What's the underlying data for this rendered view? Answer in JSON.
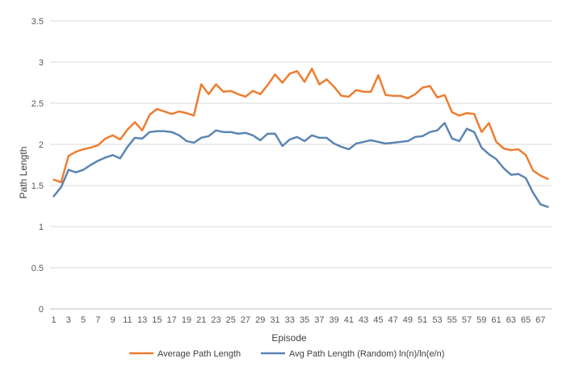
{
  "chart_data": {
    "type": "line",
    "title": "",
    "xlabel": "Episode",
    "ylabel": "Path Length",
    "ylim": [
      0,
      3.5
    ],
    "yticks": [
      "0",
      "0.5",
      "1",
      "1.5",
      "2",
      "2.5",
      "3",
      "3.5"
    ],
    "xtick_labels": [
      "1",
      "3",
      "5",
      "7",
      "9",
      "11",
      "13",
      "15",
      "17",
      "19",
      "21",
      "23",
      "25",
      "27",
      "29",
      "31",
      "33",
      "35",
      "37",
      "39",
      "41",
      "43",
      "45",
      "47",
      "49",
      "51",
      "53",
      "55",
      "57",
      "59",
      "61",
      "63",
      "65",
      "67"
    ],
    "grid": true,
    "legend_position": "bottom",
    "x": [
      1,
      2,
      3,
      4,
      5,
      6,
      7,
      8,
      9,
      10,
      11,
      12,
      13,
      14,
      15,
      16,
      17,
      18,
      19,
      20,
      21,
      22,
      23,
      24,
      25,
      26,
      27,
      28,
      29,
      30,
      31,
      32,
      33,
      34,
      35,
      36,
      37,
      38,
      39,
      40,
      41,
      42,
      43,
      44,
      45,
      46,
      47,
      48,
      49,
      50,
      51,
      52,
      53,
      54,
      55,
      56,
      57,
      58,
      59,
      60,
      61,
      62,
      63,
      64,
      65,
      66,
      67,
      68
    ],
    "series": [
      {
        "name": "Average Path Length",
        "color": "#ED7D31",
        "values": [
          1.57,
          1.54,
          1.86,
          1.91,
          1.94,
          1.96,
          1.99,
          2.07,
          2.11,
          2.06,
          2.18,
          2.27,
          2.17,
          2.36,
          2.43,
          2.4,
          2.37,
          2.4,
          2.38,
          2.35,
          2.73,
          2.61,
          2.73,
          2.64,
          2.65,
          2.61,
          2.58,
          2.65,
          2.61,
          2.72,
          2.85,
          2.75,
          2.86,
          2.89,
          2.76,
          2.92,
          2.73,
          2.79,
          2.7,
          2.59,
          2.58,
          2.66,
          2.64,
          2.64,
          2.84,
          2.6,
          2.59,
          2.59,
          2.56,
          2.61,
          2.69,
          2.71,
          2.57,
          2.6,
          2.39,
          2.35,
          2.38,
          2.37,
          2.15,
          2.26,
          2.03,
          1.95,
          1.93,
          1.94,
          1.87,
          1.68,
          1.62,
          1.58
        ]
      },
      {
        "name": "Avg Path Length (Random) ln(n)/ln(e/n)",
        "color": "#5B85B3",
        "values": [
          1.37,
          1.48,
          1.69,
          1.66,
          1.69,
          1.75,
          1.8,
          1.84,
          1.87,
          1.83,
          1.97,
          2.08,
          2.07,
          2.15,
          2.16,
          2.16,
          2.15,
          2.11,
          2.04,
          2.02,
          2.08,
          2.1,
          2.17,
          2.15,
          2.15,
          2.13,
          2.14,
          2.11,
          2.05,
          2.13,
          2.13,
          1.98,
          2.06,
          2.09,
          2.04,
          2.11,
          2.08,
          2.08,
          2.01,
          1.97,
          1.94,
          2.01,
          2.03,
          2.05,
          2.03,
          2.01,
          2.02,
          2.03,
          2.04,
          2.09,
          2.1,
          2.15,
          2.17,
          2.26,
          2.07,
          2.04,
          2.19,
          2.15,
          1.96,
          1.88,
          1.82,
          1.71,
          1.63,
          1.64,
          1.59,
          1.41,
          1.27,
          1.24
        ]
      }
    ]
  }
}
